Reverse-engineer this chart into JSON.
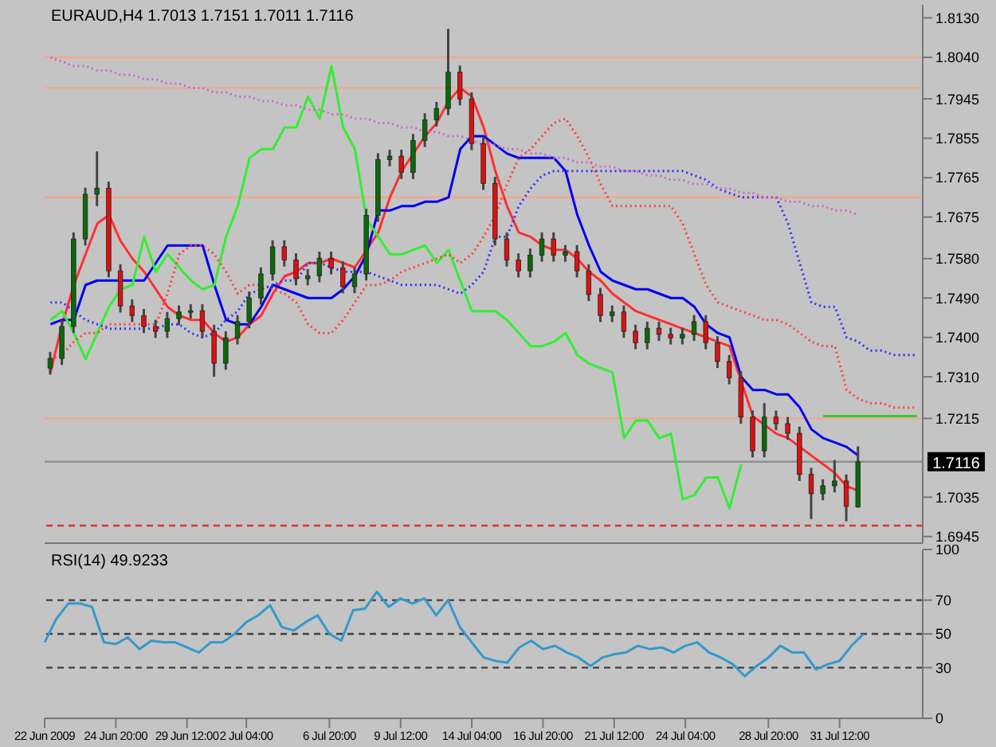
{
  "chart_data": [
    {
      "type": "candlestick",
      "title": "EURAUD,H4 1.7013 1.7151 1.7011 1.7116",
      "tick_labels": "y",
      "marker": "none",
      "categories": [
        null,
        null,
        null,
        null,
        null,
        null,
        null,
        null,
        null,
        null,
        null,
        null,
        null,
        null,
        null,
        null,
        null,
        null,
        null,
        null,
        null,
        null,
        null,
        null,
        null,
        null,
        null,
        null,
        null,
        null,
        null,
        null,
        null,
        null,
        null,
        null,
        null,
        null,
        null,
        null,
        null,
        null,
        null,
        null,
        null,
        null,
        null,
        null,
        null,
        null,
        null,
        null,
        null,
        null,
        null,
        null,
        null,
        null,
        null,
        null,
        null,
        null,
        null,
        null,
        null,
        null,
        null,
        null,
        null,
        null,
        null,
        null,
        null,
        null,
        null
      ],
      "ohlc": [
        [
          1.733,
          1.7367,
          1.7315,
          1.7352
        ],
        [
          1.7352,
          1.744,
          1.7337,
          1.7425
        ],
        [
          1.7425,
          1.764,
          1.741,
          1.7625
        ],
        [
          1.7625,
          1.7742,
          1.761,
          1.7727
        ],
        [
          1.7727,
          1.7825,
          1.77,
          1.7741
        ],
        [
          1.7741,
          1.7756,
          1.7537,
          1.7552
        ],
        [
          1.7552,
          1.7567,
          1.7457,
          1.7472
        ],
        [
          1.7472,
          1.7487,
          1.7435,
          1.745
        ],
        [
          1.745,
          1.7465,
          1.741,
          1.7425
        ],
        [
          1.7425,
          1.744,
          1.7399,
          1.7414
        ],
        [
          1.7414,
          1.7458,
          1.7399,
          1.7443
        ],
        [
          1.7443,
          1.7473,
          1.7428,
          1.7458
        ],
        [
          1.7458,
          1.7476,
          1.7443,
          1.7461
        ],
        [
          1.7461,
          1.7476,
          1.7399,
          1.7414
        ],
        [
          1.7414,
          1.7429,
          1.731,
          1.7341
        ],
        [
          1.7341,
          1.7414,
          1.7326,
          1.7399
        ],
        [
          1.7399,
          1.7451,
          1.7384,
          1.7436
        ],
        [
          1.7436,
          1.7505,
          1.7421,
          1.749
        ],
        [
          1.749,
          1.756,
          1.7475,
          1.7545
        ],
        [
          1.7545,
          1.7622,
          1.753,
          1.7607
        ],
        [
          1.7607,
          1.7622,
          1.7562,
          1.7577
        ],
        [
          1.7577,
          1.7592,
          1.7519,
          1.7534
        ],
        [
          1.7534,
          1.7556,
          1.7519,
          1.7541
        ],
        [
          1.7541,
          1.7596,
          1.7526,
          1.7581
        ],
        [
          1.7581,
          1.7596,
          1.7544,
          1.7559
        ],
        [
          1.7559,
          1.7574,
          1.7501,
          1.7516
        ],
        [
          1.7516,
          1.756,
          1.7501,
          1.7545
        ],
        [
          1.7545,
          1.7694,
          1.753,
          1.7679
        ],
        [
          1.7679,
          1.7821,
          1.7664,
          1.7806
        ],
        [
          1.7806,
          1.7829,
          1.7791,
          1.7814
        ],
        [
          1.7814,
          1.7829,
          1.7762,
          1.7777
        ],
        [
          1.7777,
          1.7865,
          1.7762,
          1.785
        ],
        [
          1.785,
          1.7912,
          1.7835,
          1.7897
        ],
        [
          1.7897,
          1.7938,
          1.7882,
          1.7923
        ],
        [
          1.7923,
          1.8105,
          1.7908,
          1.8006
        ],
        [
          1.8006,
          1.8021,
          1.793,
          1.7945
        ],
        [
          1.7945,
          1.796,
          1.7828,
          1.7843
        ],
        [
          1.7843,
          1.7858,
          1.7737,
          1.7752
        ],
        [
          1.7752,
          1.7767,
          1.761,
          1.7625
        ],
        [
          1.7625,
          1.764,
          1.7562,
          1.7577
        ],
        [
          1.7577,
          1.7592,
          1.7537,
          1.7552
        ],
        [
          1.7552,
          1.7603,
          1.7537,
          1.7588
        ],
        [
          1.7588,
          1.764,
          1.7573,
          1.7625
        ],
        [
          1.7625,
          1.764,
          1.7573,
          1.7588
        ],
        [
          1.7588,
          1.7611,
          1.7573,
          1.7596
        ],
        [
          1.7596,
          1.7611,
          1.7537,
          1.7552
        ],
        [
          1.7552,
          1.7567,
          1.7483,
          1.7498
        ],
        [
          1.7498,
          1.7513,
          1.7435,
          1.745
        ],
        [
          1.745,
          1.7473,
          1.7435,
          1.7458
        ],
        [
          1.7458,
          1.7473,
          1.7399,
          1.7414
        ],
        [
          1.7414,
          1.7429,
          1.7373,
          1.7388
        ],
        [
          1.7388,
          1.7436,
          1.7373,
          1.7421
        ],
        [
          1.7421,
          1.7436,
          1.7392,
          1.7407
        ],
        [
          1.7407,
          1.7422,
          1.7384,
          1.7399
        ],
        [
          1.7399,
          1.7422,
          1.7384,
          1.7407
        ],
        [
          1.7407,
          1.7451,
          1.7392,
          1.7436
        ],
        [
          1.7436,
          1.7451,
          1.7373,
          1.7388
        ],
        [
          1.7388,
          1.7403,
          1.733,
          1.7345
        ],
        [
          1.7345,
          1.736,
          1.7293,
          1.7308
        ],
        [
          1.7308,
          1.7323,
          1.7203,
          1.7218
        ],
        [
          1.7218,
          1.7233,
          1.7126,
          1.7141
        ],
        [
          1.7141,
          1.725,
          1.7126,
          1.7218
        ],
        [
          1.7218,
          1.7233,
          1.7188,
          1.7203
        ],
        [
          1.7203,
          1.7218,
          1.7166,
          1.7181
        ],
        [
          1.7181,
          1.7196,
          1.7072,
          1.7087
        ],
        [
          1.7087,
          1.7102,
          1.6985,
          1.7043
        ],
        [
          1.7043,
          1.7076,
          1.7028,
          1.7061
        ],
        [
          1.7061,
          1.712,
          1.7046,
          1.7072
        ],
        [
          1.7072,
          1.7087,
          1.698,
          1.7014
        ],
        [
          1.7013,
          1.7151,
          1.7011,
          1.7116
        ],
        null,
        null,
        null,
        null,
        null
      ],
      "series": [
        {
          "type": "line",
          "color": "#ff3030",
          "line_style": "solid",
          "values": [
            1.732,
            1.743,
            1.752,
            1.759,
            1.766,
            1.768,
            1.762,
            1.758,
            1.755,
            1.751,
            1.747,
            1.745,
            1.744,
            1.744,
            1.741,
            1.739,
            1.74,
            1.743,
            1.745,
            1.75,
            1.754,
            1.755,
            1.757,
            1.757,
            1.758,
            1.757,
            1.756,
            1.76,
            1.764,
            1.772,
            1.778,
            1.782,
            1.786,
            1.789,
            1.794,
            1.797,
            1.795,
            1.788,
            1.778,
            1.77,
            1.764,
            1.763,
            1.761,
            1.76,
            1.76,
            1.758,
            1.755,
            1.753,
            1.75,
            1.748,
            1.746,
            1.745,
            1.744,
            1.743,
            1.742,
            1.741,
            1.74,
            1.739,
            1.738,
            1.73,
            1.722,
            1.72,
            1.718,
            1.717,
            1.715,
            1.713,
            1.711,
            1.709,
            1.706,
            1.705,
            null,
            null,
            null,
            null,
            null
          ]
        },
        {
          "type": "line",
          "color": "#0000ee",
          "line_style": "solid",
          "values": [
            1.743,
            1.744,
            1.744,
            1.752,
            1.753,
            1.753,
            1.753,
            1.753,
            1.753,
            1.757,
            1.761,
            1.761,
            1.761,
            1.761,
            1.752,
            1.744,
            1.743,
            1.743,
            1.747,
            1.752,
            1.751,
            1.75,
            1.749,
            1.749,
            1.749,
            1.751,
            1.754,
            1.759,
            1.769,
            1.769,
            1.77,
            1.77,
            1.771,
            1.771,
            1.772,
            1.783,
            1.786,
            1.786,
            1.784,
            1.782,
            1.781,
            1.781,
            1.781,
            1.781,
            1.778,
            1.768,
            1.761,
            1.755,
            1.753,
            1.752,
            1.751,
            1.751,
            1.75,
            1.749,
            1.749,
            1.747,
            1.743,
            1.741,
            1.74,
            1.731,
            1.728,
            1.728,
            1.727,
            1.727,
            1.724,
            1.719,
            1.717,
            1.716,
            1.715,
            1.713,
            null,
            null,
            null,
            null,
            null
          ]
        },
        {
          "type": "line",
          "color": "#33ee33",
          "line_style": "solid",
          "values": [
            1.744,
            1.746,
            1.741,
            1.735,
            1.741,
            1.747,
            1.751,
            1.752,
            1.763,
            1.755,
            1.759,
            1.756,
            1.753,
            1.751,
            1.752,
            1.763,
            1.77,
            1.781,
            1.783,
            1.783,
            1.788,
            1.788,
            1.795,
            1.79,
            1.802,
            1.788,
            1.783,
            1.767,
            1.763,
            1.759,
            1.759,
            1.76,
            1.761,
            1.757,
            1.76,
            1.753,
            1.746,
            1.746,
            1.746,
            1.744,
            1.741,
            1.738,
            1.738,
            1.739,
            1.741,
            1.736,
            1.734,
            1.733,
            1.732,
            1.717,
            1.721,
            1.721,
            1.717,
            1.718,
            1.703,
            1.704,
            1.708,
            1.708,
            1.701,
            1.711,
            null,
            null,
            null,
            null,
            null,
            null,
            null,
            null,
            null,
            null,
            null,
            null,
            null,
            null,
            null
          ]
        },
        {
          "type": "line",
          "color": "#ff4040",
          "line_style": "dotted",
          "values": [
            1.735,
            1.736,
            1.739,
            1.741,
            1.741,
            1.743,
            1.743,
            1.743,
            1.743,
            1.743,
            1.75,
            1.759,
            1.761,
            1.761,
            1.759,
            1.755,
            1.75,
            1.752,
            1.752,
            1.751,
            1.75,
            1.748,
            1.743,
            1.741,
            1.741,
            1.744,
            1.748,
            1.752,
            1.752,
            1.753,
            1.755,
            1.756,
            1.757,
            1.758,
            1.759,
            1.757,
            1.759,
            1.763,
            1.768,
            1.775,
            1.781,
            1.783,
            1.786,
            1.789,
            1.79,
            1.786,
            1.781,
            1.775,
            1.77,
            1.77,
            1.77,
            1.77,
            1.77,
            1.77,
            1.766,
            1.759,
            1.752,
            1.748,
            1.747,
            1.746,
            1.745,
            1.744,
            1.744,
            1.743,
            1.741,
            1.739,
            1.738,
            1.738,
            1.728,
            1.726,
            1.725,
            1.725,
            1.724,
            1.724,
            1.724
          ]
        },
        {
          "type": "line",
          "color": "#3030ff",
          "line_style": "dotted",
          "values": [
            1.748,
            1.748,
            1.746,
            1.744,
            1.743,
            1.742,
            1.742,
            1.742,
            1.742,
            1.742,
            1.743,
            1.743,
            1.741,
            1.74,
            1.741,
            1.744,
            1.746,
            1.75,
            1.751,
            1.752,
            1.753,
            1.753,
            1.757,
            1.757,
            1.756,
            1.755,
            1.755,
            1.755,
            1.754,
            1.753,
            1.752,
            1.752,
            1.752,
            1.752,
            1.751,
            1.75,
            1.752,
            1.755,
            1.763,
            1.763,
            1.77,
            1.774,
            1.777,
            1.778,
            1.778,
            1.778,
            1.778,
            1.778,
            1.778,
            1.778,
            1.778,
            1.778,
            1.778,
            1.778,
            1.778,
            1.777,
            1.776,
            1.774,
            1.773,
            1.772,
            1.772,
            1.772,
            1.772,
            1.766,
            1.757,
            1.748,
            1.747,
            1.747,
            1.74,
            1.739,
            1.737,
            1.737,
            1.736,
            1.736,
            1.736
          ]
        },
        {
          "type": "line",
          "color": "#cc66cc",
          "line_style": "dotted",
          "values": [
            1.804,
            1.803,
            1.802,
            1.802,
            1.801,
            1.801,
            1.8,
            1.8,
            1.799,
            1.799,
            1.798,
            1.798,
            1.797,
            1.797,
            1.796,
            1.796,
            1.795,
            1.795,
            1.794,
            1.794,
            1.793,
            1.793,
            1.792,
            1.792,
            1.791,
            1.791,
            1.79,
            1.79,
            1.789,
            1.789,
            1.788,
            1.788,
            1.787,
            1.787,
            1.786,
            1.786,
            1.785,
            1.784,
            1.784,
            1.783,
            1.783,
            1.782,
            1.782,
            1.781,
            1.781,
            1.78,
            1.78,
            1.779,
            1.779,
            1.778,
            1.778,
            1.777,
            1.777,
            1.776,
            1.776,
            1.775,
            1.775,
            1.774,
            1.774,
            1.773,
            1.773,
            1.772,
            1.772,
            1.771,
            1.771,
            1.77,
            1.77,
            1.769,
            1.769,
            1.768,
            null,
            null,
            null,
            null,
            null
          ]
        },
        {
          "type": "line",
          "color": "#33cc33",
          "line_style": "solid",
          "values": [
            null,
            null,
            null,
            null,
            null,
            null,
            null,
            null,
            null,
            null,
            null,
            null,
            null,
            null,
            null,
            null,
            null,
            null,
            null,
            null,
            null,
            null,
            null,
            null,
            null,
            null,
            null,
            null,
            null,
            null,
            null,
            null,
            null,
            null,
            null,
            null,
            null,
            null,
            null,
            null,
            null,
            null,
            null,
            null,
            null,
            null,
            null,
            null,
            null,
            null,
            null,
            null,
            null,
            null,
            null,
            null,
            null,
            null,
            null,
            null,
            null,
            null,
            null,
            null,
            null,
            null,
            1.722,
            1.722,
            1.722,
            1.722,
            1.722,
            1.722,
            1.722,
            1.722,
            1.722
          ]
        }
      ],
      "ylim": [
        1.693,
        1.816
      ],
      "yticks": [
        {
          "value": 1.813,
          "label": "1.8130"
        },
        {
          "value": 1.804,
          "label": "1.8040"
        },
        {
          "value": 1.7945,
          "label": "1.7945"
        },
        {
          "value": 1.7855,
          "label": "1.7855"
        },
        {
          "value": 1.7765,
          "label": "1.7765"
        },
        {
          "value": 1.7675,
          "label": "1.7675"
        },
        {
          "value": 1.758,
          "label": "1.7580"
        },
        {
          "value": 1.749,
          "label": "1.7490"
        },
        {
          "value": 1.74,
          "label": "1.7400"
        },
        {
          "value": 1.731,
          "label": "1.7310"
        },
        {
          "value": 1.7215,
          "label": "1.7215"
        },
        {
          "value": 1.7035,
          "label": "1.7035"
        },
        {
          "value": 1.6945,
          "label": "1.6945"
        }
      ],
      "ref_lines": [
        {
          "axis": "y",
          "value": 1.804,
          "color": "#f0a890",
          "line_style": "solid"
        },
        {
          "axis": "y",
          "value": 1.797,
          "color": "#f0a890",
          "line_style": "solid"
        },
        {
          "axis": "y",
          "value": 1.772,
          "color": "#f0a890",
          "line_style": "solid"
        },
        {
          "axis": "y",
          "value": 1.7215,
          "color": "#f0a890",
          "line_style": "solid"
        },
        {
          "axis": "y",
          "value": 1.7116,
          "color": "#909090",
          "line_style": "solid",
          "label": "1.7116"
        },
        {
          "axis": "y",
          "value": 1.697,
          "color": "#e03030",
          "line_style": "dashed"
        }
      ]
    },
    {
      "type": "line",
      "title": "RSI(14) 49.9233",
      "marker": "none",
      "categories": [
        "22 Jun 2009",
        null,
        null,
        null,
        null,
        null,
        "24 Jun 20:00",
        null,
        null,
        null,
        null,
        null,
        "29 Jun 12:00",
        null,
        null,
        null,
        null,
        "2 Jul 04:00",
        null,
        null,
        null,
        null,
        null,
        null,
        "6 Jul 20:00",
        null,
        null,
        null,
        null,
        null,
        "9 Jul 12:00",
        null,
        null,
        null,
        null,
        null,
        "14 Jul 04:00",
        null,
        null,
        null,
        null,
        null,
        "16 Jul 20:00",
        null,
        null,
        null,
        null,
        null,
        "21 Jul 12:00",
        null,
        null,
        null,
        null,
        null,
        "24 Jul 04:00",
        null,
        null,
        null,
        null,
        null,
        null,
        "28 Jul 20:00",
        null,
        null,
        null,
        null,
        null,
        "31 Jul 12:00",
        null,
        null,
        null,
        null,
        null,
        null,
        null
      ],
      "series": [
        {
          "color": "#3399cc",
          "values": [
            45,
            59,
            68,
            68,
            66,
            45,
            44,
            48,
            41,
            46,
            45,
            45,
            42,
            39,
            45,
            45,
            50,
            57,
            61,
            67,
            54,
            52,
            57,
            61,
            50,
            46,
            64,
            65,
            75,
            66,
            71,
            68,
            71,
            61,
            70,
            54,
            45,
            36,
            34,
            33,
            42,
            46,
            41,
            43,
            39,
            36,
            31,
            36,
            38,
            39,
            43,
            41,
            42,
            39,
            43,
            45,
            39,
            36,
            32,
            25,
            31,
            36,
            43,
            39,
            39,
            29,
            32,
            34,
            43,
            49.9,
            null,
            null,
            null,
            null,
            null
          ]
        }
      ],
      "ylim": [
        0,
        100
      ],
      "yticks": [
        0,
        30,
        50,
        70,
        100
      ],
      "ref_lines": [
        {
          "axis": "y",
          "value": 70,
          "color": "#404040",
          "line_style": "dashed"
        },
        {
          "axis": "y",
          "value": 50,
          "color": "#404040",
          "line_style": "dashed"
        },
        {
          "axis": "y",
          "value": 30,
          "color": "#404040",
          "line_style": "dashed"
        }
      ]
    }
  ]
}
